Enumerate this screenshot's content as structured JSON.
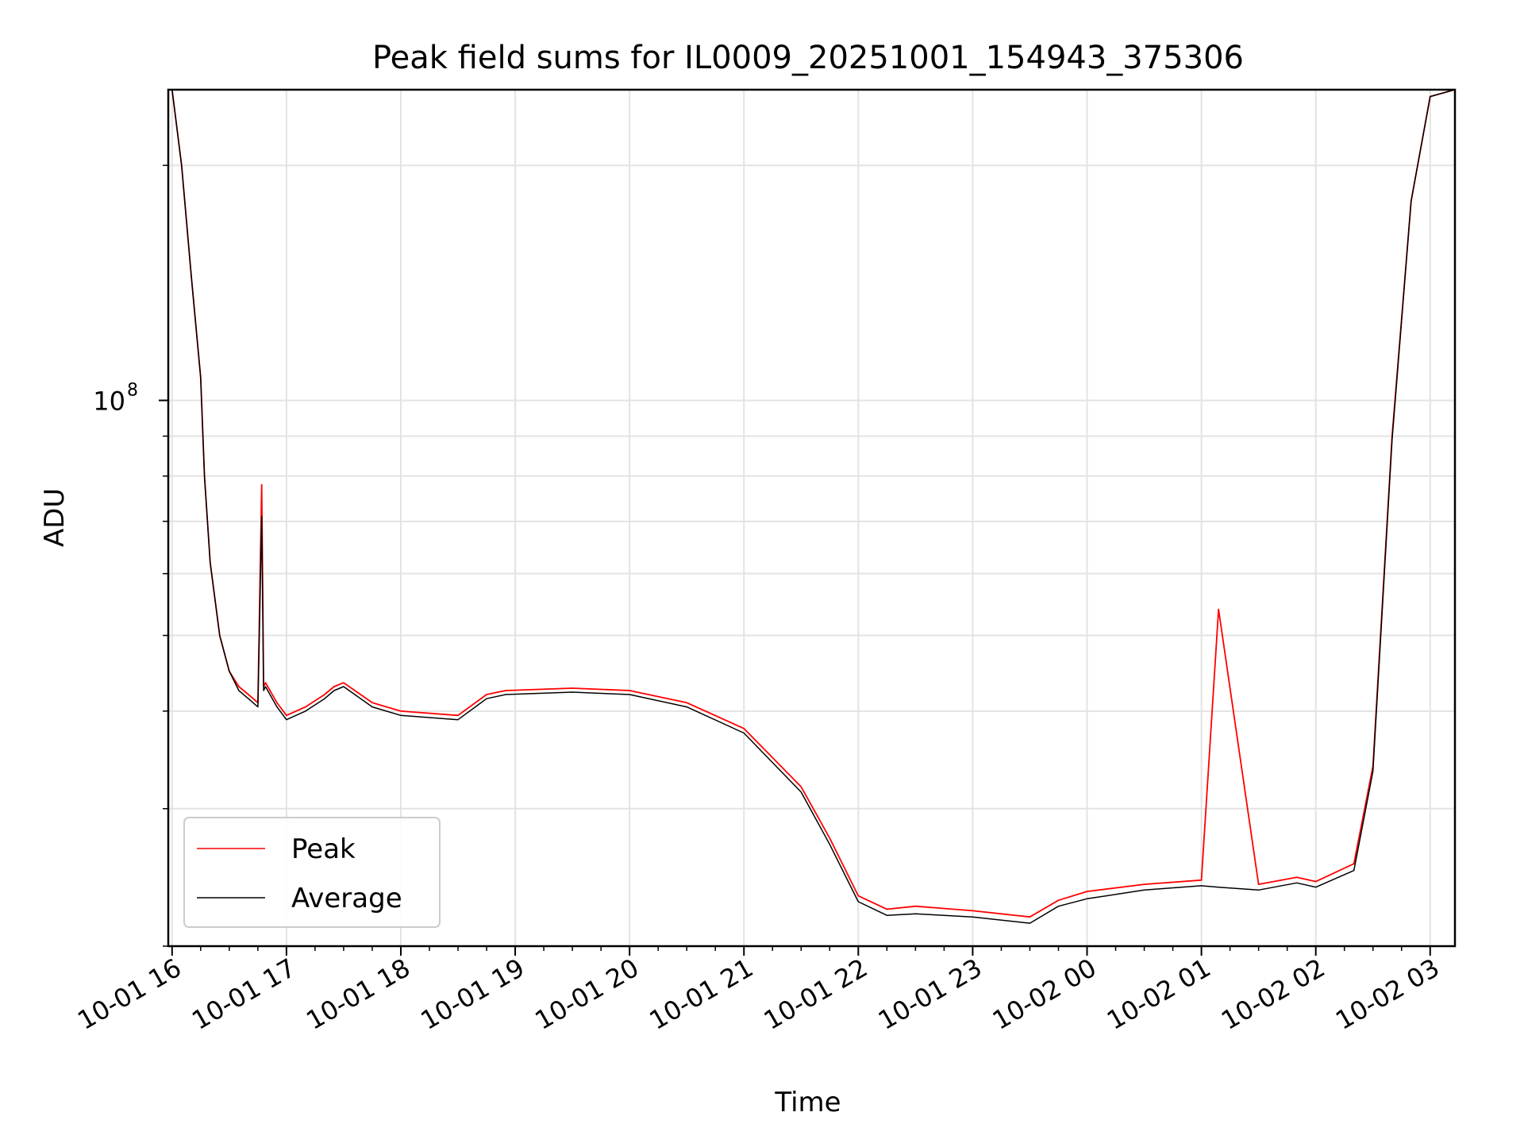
{
  "chart_data": {
    "type": "line",
    "title": "Peak field sums for IL0009_20251001_154943_375306",
    "xlabel": "Time",
    "ylabel": "ADU",
    "y_scale": "log",
    "ylim": [
      20000000,
      250000000
    ],
    "xlim": [
      "10-01 15:58",
      "10-02 03:13"
    ],
    "x_ticks": [
      "10-01 16",
      "10-01 17",
      "10-01 18",
      "10-01 19",
      "10-01 20",
      "10-01 21",
      "10-01 22",
      "10-01 23",
      "10-02 00",
      "10-02 01",
      "10-02 02",
      "10-02 03"
    ],
    "y_ticks": [
      {
        "value": 100000000,
        "label": "10",
        "exponent": "8"
      }
    ],
    "grid": true,
    "legend": {
      "placement": "lower-left"
    },
    "x": [
      "10-01 16:00",
      "10-01 16:05",
      "10-01 16:10",
      "10-01 16:15",
      "10-01 16:17",
      "10-01 16:20",
      "10-01 16:25",
      "10-01 16:30",
      "10-01 16:35",
      "10-01 16:40",
      "10-01 16:45",
      "10-01 16:47",
      "10-01 16:48",
      "10-01 16:49",
      "10-01 16:55",
      "10-01 17:00",
      "10-01 17:10",
      "10-01 17:20",
      "10-01 17:25",
      "10-01 17:30",
      "10-01 17:45",
      "10-01 18:00",
      "10-01 18:30",
      "10-01 18:45",
      "10-01 18:55",
      "10-01 19:30",
      "10-01 20:00",
      "10-01 20:30",
      "10-01 21:00",
      "10-01 21:30",
      "10-01 21:45",
      "10-01 22:00",
      "10-01 22:15",
      "10-01 22:30",
      "10-01 23:00",
      "10-01 23:30",
      "10-01 23:45",
      "10-02 00:00",
      "10-02 00:30",
      "10-02 01:00",
      "10-02 01:09",
      "10-02 01:30",
      "10-02 01:50",
      "10-02 02:00",
      "10-02 02:20",
      "10-02 02:30",
      "10-02 02:40",
      "10-02 02:50",
      "10-02 03:00",
      "10-02 03:13"
    ],
    "series": [
      {
        "name": "Peak",
        "color": "#ff0000",
        "values": [
          250000000,
          200000000,
          145000000,
          107000000,
          80000000,
          62000000,
          50000000,
          45000000,
          43000000,
          42000000,
          41000000,
          78000000,
          43000000,
          43500000,
          41000000,
          39500000,
          40500000,
          42000000,
          43000000,
          43500000,
          41000000,
          40000000,
          39500000,
          42000000,
          42500000,
          42800000,
          42500000,
          41000000,
          38000000,
          32000000,
          27500000,
          23200000,
          22300000,
          22500000,
          22200000,
          21800000,
          22900000,
          23500000,
          24000000,
          24300000,
          54000000,
          24000000,
          24500000,
          24200000,
          25500000,
          34000000,
          90000000,
          180000000,
          245000000,
          250000000
        ]
      },
      {
        "name": "Average",
        "color": "#000000",
        "values": [
          250000000,
          200000000,
          145000000,
          107000000,
          80000000,
          62000000,
          50000000,
          45000000,
          42500000,
          41500000,
          40500000,
          71000000,
          42500000,
          43000000,
          40500000,
          39000000,
          40000000,
          41500000,
          42500000,
          43000000,
          40500000,
          39500000,
          39000000,
          41500000,
          42000000,
          42300000,
          42000000,
          40500000,
          37500000,
          31500000,
          27000000,
          22800000,
          21900000,
          22000000,
          21800000,
          21400000,
          22500000,
          23000000,
          23600000,
          23900000,
          23800000,
          23600000,
          24100000,
          23800000,
          25000000,
          33500000,
          89000000,
          180000000,
          245000000,
          250000000
        ]
      }
    ]
  }
}
